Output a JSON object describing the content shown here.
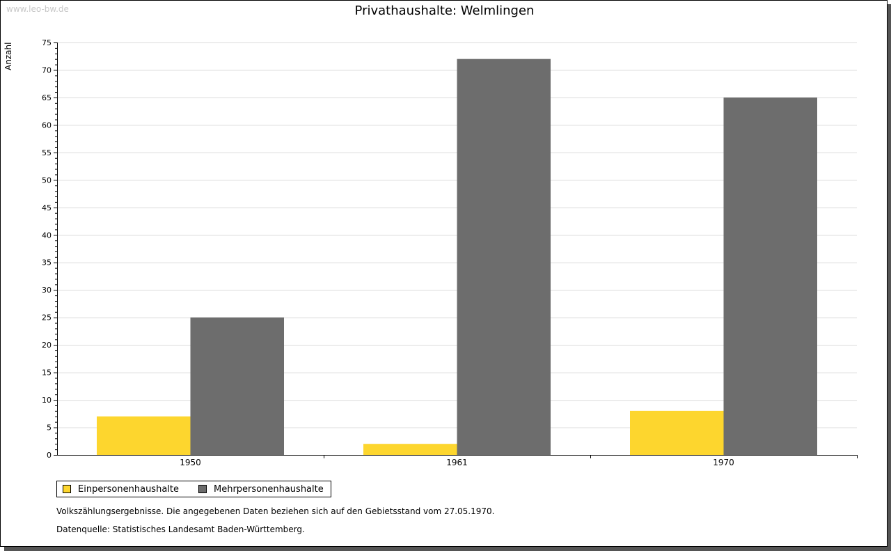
{
  "watermark": "www.leo-bw.de",
  "chart_data": {
    "type": "bar",
    "title": "Privathaushalte: Welmlingen",
    "ylabel": "Anzahl",
    "xlabel": "",
    "categories": [
      "1950",
      "1961",
      "1970"
    ],
    "series": [
      {
        "name": "Einpersonenhaushalte",
        "values": [
          7,
          2,
          8
        ],
        "color": "#fdd62e"
      },
      {
        "name": "Mehrpersonenhaushalte",
        "values": [
          25,
          72,
          65
        ],
        "color": "#6d6d6d"
      }
    ],
    "ylim": [
      0,
      75
    ],
    "yticks": [
      0,
      5,
      10,
      15,
      20,
      25,
      30,
      35,
      40,
      45,
      50,
      55,
      60,
      65,
      70,
      75
    ],
    "grid": true,
    "legend": "bottom-left"
  },
  "notes": [
    "Volkszählungsergebnisse. Die angegebenen Daten beziehen sich auf den Gebietsstand vom 27.05.1970.",
    "Datenquelle: Statistisches Landesamt Baden-Württemberg."
  ]
}
